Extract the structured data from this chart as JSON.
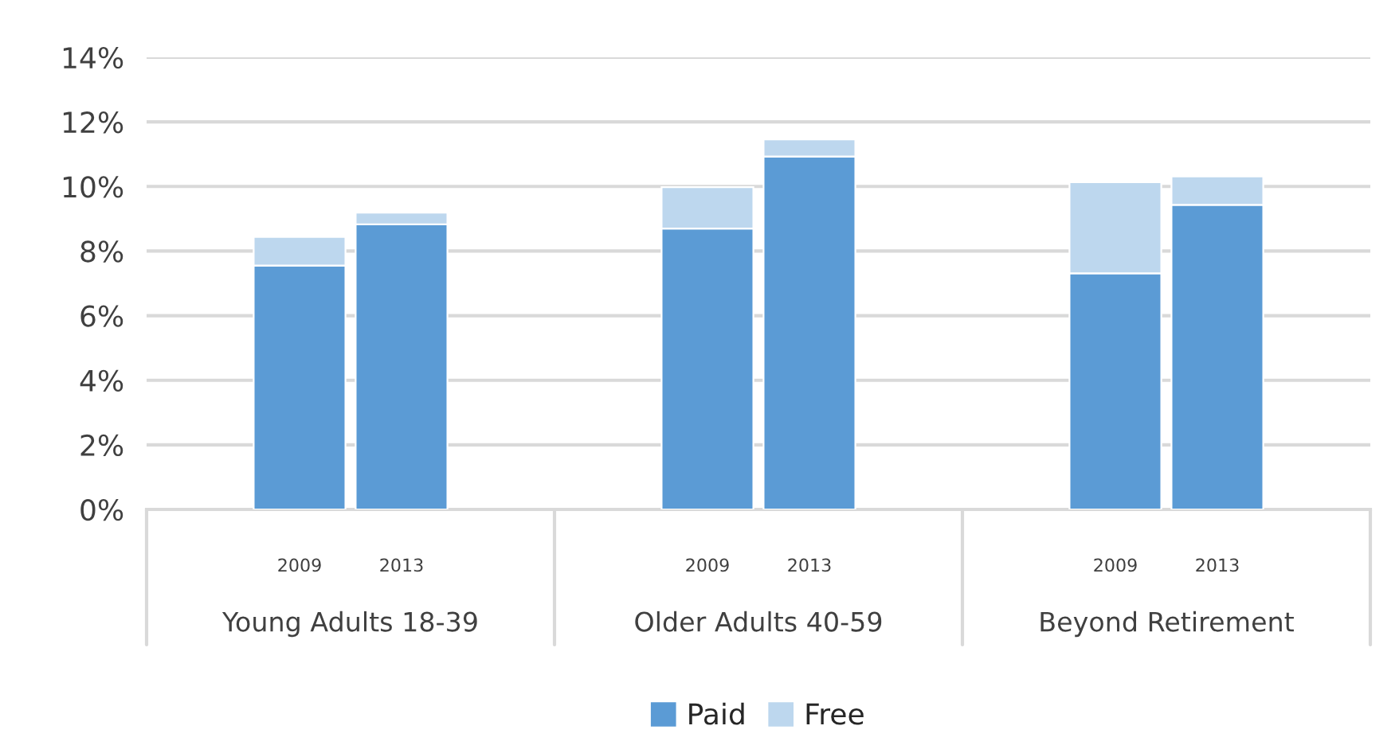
{
  "chart_data": {
    "type": "bar",
    "stacked": true,
    "categories": [
      null,
      "2009",
      "2013",
      null,
      null,
      "2009",
      "2013",
      null,
      null,
      "2009",
      "2013",
      null
    ],
    "annotations": [
      "Young Adults 18-39",
      "Older Adults 40-59",
      "Beyond Retirement"
    ],
    "series": [
      {
        "name": "Paid",
        "color": "#5b9bd5",
        "values": [
          null,
          7.55,
          8.83,
          null,
          null,
          8.7,
          10.93,
          null,
          null,
          7.31,
          9.43,
          null
        ]
      },
      {
        "name": "Free",
        "color": "#bdd7ee",
        "values": [
          null,
          0.89,
          0.36,
          null,
          null,
          1.28,
          0.53,
          null,
          null,
          2.82,
          0.88,
          null
        ]
      }
    ],
    "ylim": [
      0,
      14
    ],
    "yticks": [
      {
        "value": 0,
        "label": "0%"
      },
      {
        "value": 2,
        "label": "2%"
      },
      {
        "value": 4,
        "label": "4%"
      },
      {
        "value": 6,
        "label": "6%"
      },
      {
        "value": 8,
        "label": "8%"
      },
      {
        "value": 10,
        "label": "10%"
      },
      {
        "value": 12,
        "label": "12%"
      },
      {
        "value": 14,
        "label": "14%"
      }
    ],
    "grid": "y",
    "legend": "bottom"
  }
}
